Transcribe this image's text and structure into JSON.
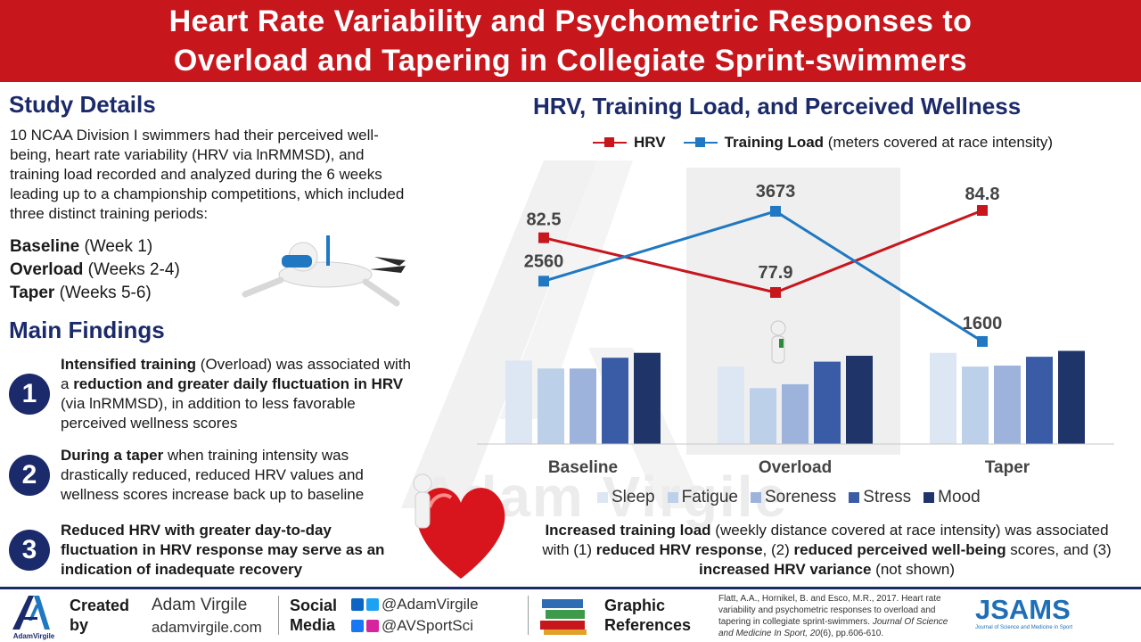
{
  "header": {
    "line1": "Heart Rate Variability and Psychometric Responses to",
    "line2": "Overload and Tapering in Collegiate Sprint-swimmers"
  },
  "study": {
    "title": "Study Details",
    "body": "10 NCAA Division I swimmers had their perceived well-being, heart rate variability (HRV via lnRMMSD), and training load recorded and analyzed during the 6 weeks leading up to a championship competitions, which included three distinct training periods:",
    "periods": [
      {
        "name": "Baseline",
        "weeks": "(Week 1)"
      },
      {
        "name": "Overload",
        "weeks": "(Weeks 2-4)"
      },
      {
        "name": "Taper",
        "weeks": "(Weeks 5-6)"
      }
    ]
  },
  "findings": {
    "title": "Main Findings",
    "items": [
      {
        "num": "1",
        "a": "Intensified training",
        "b": " (Overload) was associated with a ",
        "c": "reduction and greater daily fluctuation in HRV",
        "d": " (via lnRMMSD), in addition to less favorable perceived wellness scores"
      },
      {
        "num": "2",
        "a": "During a taper",
        "b": " when training intensity was drastically reduced, reduced HRV values and wellness scores increase back up to baseline",
        "c": "",
        "d": ""
      },
      {
        "num": "3",
        "a": "Reduced HRV with greater day-to-day fluctuation in HRV response may serve as an indication of inadequate recovery",
        "b": "",
        "c": "",
        "d": ""
      }
    ]
  },
  "chart_data": {
    "type": "bar",
    "title": "HRV, Training Load, and Perceived Wellness",
    "categories": [
      "Baseline",
      "Overload",
      "Taper"
    ],
    "lines": [
      {
        "name": "HRV",
        "values": [
          82.5,
          77.9,
          84.8
        ],
        "labels": [
          "82.5",
          "77.9",
          "84.8"
        ],
        "color": "#c8161d"
      },
      {
        "name": "Training Load",
        "values": [
          2560,
          3673,
          1600
        ],
        "labels": [
          "2560",
          "3673",
          "1600"
        ],
        "color": "#1f78c1"
      }
    ],
    "legend_line_names": {
      "hrv": "HRV",
      "load": "Training Load",
      "load_note": "(meters covered at race intensity)"
    },
    "series": [
      {
        "name": "Sleep",
        "values": [
          85,
          79,
          93
        ],
        "color": "#dde6f3"
      },
      {
        "name": "Fatigue",
        "values": [
          77,
          57,
          79
        ],
        "color": "#bcd0ea"
      },
      {
        "name": "Soreness",
        "values": [
          77,
          61,
          80
        ],
        "color": "#9db3dc"
      },
      {
        "name": "Stress",
        "values": [
          88,
          84,
          89
        ],
        "color": "#3a5ca6"
      },
      {
        "name": "Mood",
        "values": [
          93,
          90,
          95
        ],
        "color": "#1f3468"
      }
    ],
    "ylim_bars": [
      0,
      100
    ]
  },
  "caption": {
    "p1": "Increased training load",
    "p2": " (weekly distance covered at race intensity) was associated with (1) ",
    "p3": "reduced HRV response",
    "p4": ", (2) ",
    "p5": "reduced perceived well-being",
    "p6": " scores, and (3) ",
    "p7": "increased HRV variance",
    "p8": " (not shown)"
  },
  "watermark": "Adam Virgile",
  "footer": {
    "logo_caption": "AdamVirgile",
    "created_label": "Created by",
    "created_name": "Adam Virgile",
    "created_site": "adamvirgile.com",
    "social_label": "Social Media",
    "social_handle1": "@AdamVirgile",
    "social_handle2": "@AVSportSci",
    "graphic_label": "Graphic References",
    "ref_authors": "Flatt, A.A., Hornikel, B. and Esco, M.R., 2017. Heart rate variability and psychometric responses to overload and tapering in collegiate sprint-swimmers.",
    "ref_journal": "Journal Of Science and Medicine In Sport,",
    "ref_volume": "20",
    "ref_issue": "(6), pp.606-610.",
    "jsams": "JSAMS",
    "jsams_sub": "Journal of Science and Medicine in Sport"
  },
  "colors": {
    "brand_red": "#c8161d",
    "navy": "#1b2a6b",
    "blue": "#1f78c1"
  }
}
